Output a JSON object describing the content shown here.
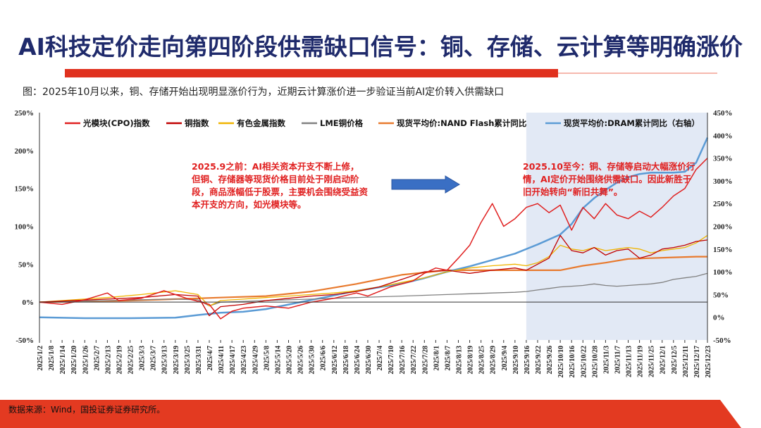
{
  "title": "AI科技定价走向第四阶段供需缺口信号：铜、存储、云计算等明确涨价",
  "caption": "图：2025年10月以来，铜、存储开始出现明显涨价行为，近期云计算涨价进一步验证当前AI定价转入供需缺口",
  "source": "数据来源：Wind，国投证券证券研究所。",
  "colors": {
    "title": "#1f2a6b",
    "accent_red": "#e0311e",
    "shade": "#dde5f3"
  },
  "annotations": {
    "before": "2025.9之前：AI相关资本开支不断上修，但铜、存储器等现货价格目前处于刚启动阶段，商品涨幅低于股票，主要机会围绕受益资本开支的方向，如光模块等。",
    "after": "2025.10至今：铜、存储等启动大幅涨价行情，AI定价开始围绕供需缺口。因此新胜于旧开始转向“新旧共舞”。"
  },
  "chart_data": {
    "type": "line",
    "x_labels": [
      "2025/1/2",
      "2025/1/8",
      "2025/1/14",
      "2025/1/20",
      "2025/1/26",
      "2025/2/7",
      "2025/2/13",
      "2025/2/19",
      "2025/2/25",
      "2025/3/3",
      "2025/3/7",
      "2025/3/13",
      "2025/3/19",
      "2025/3/25",
      "2025/3/31",
      "2025/4/7",
      "2025/4/11",
      "2025/4/17",
      "2025/4/23",
      "2025/4/29",
      "2025/5/8",
      "2025/5/14",
      "2025/5/20",
      "2025/5/26",
      "2025/5/30",
      "2025/6/6",
      "2025/6/12",
      "2025/6/18",
      "2025/6/24",
      "2025/6/30",
      "2025/7/4",
      "2025/7/10",
      "2025/7/16",
      "2025/7/22",
      "2025/7/28",
      "2025/8/1",
      "2025/8/7",
      "2025/8/13",
      "2025/8/19",
      "2025/8/25",
      "2025/8/29",
      "2025/9/4",
      "2025/9/10",
      "2025/9/16",
      "2025/9/22",
      "2025/9/26",
      "2025/10/10",
      "2025/10/16",
      "2025/10/22",
      "2025/10/28",
      "2025/11/3",
      "2025/11/7",
      "2025/11/13",
      "2025/11/19",
      "2025/11/25",
      "2025/12/1",
      "2025/12/5",
      "2025/12/11",
      "2025/12/17",
      "2025/12/23"
    ],
    "left_axis": {
      "min": -50,
      "max": 250,
      "ticks": [
        "-50%",
        "0%",
        "50%",
        "100%",
        "150%",
        "200%",
        "250%"
      ],
      "tick_values": [
        -50,
        0,
        50,
        100,
        150,
        200,
        250
      ]
    },
    "right_axis": {
      "min": -50,
      "max": 450,
      "ticks": [
        "-50%",
        "0%",
        "50%",
        "100%",
        "150%",
        "200%",
        "250%",
        "300%",
        "350%",
        "400%",
        "450%"
      ],
      "tick_values": [
        -50,
        0,
        50,
        100,
        150,
        200,
        250,
        300,
        350,
        400,
        450
      ]
    },
    "shaded_range": [
      "2025/9/16",
      "2025/12/23"
    ],
    "series": [
      {
        "name": "光模块(CPO)指数",
        "color": "#e02020",
        "axis": "left",
        "width": 1.5,
        "points": [
          [
            0,
            0
          ],
          [
            2,
            -3
          ],
          [
            4,
            3
          ],
          [
            6,
            12
          ],
          [
            7,
            2
          ],
          [
            9,
            5
          ],
          [
            11,
            15
          ],
          [
            13,
            5
          ],
          [
            15,
            -3
          ],
          [
            16,
            -22
          ],
          [
            17,
            -12
          ],
          [
            18,
            -8
          ],
          [
            20,
            -5
          ],
          [
            22,
            -8
          ],
          [
            23,
            -4
          ],
          [
            24,
            0
          ],
          [
            26,
            5
          ],
          [
            28,
            12
          ],
          [
            29,
            8
          ],
          [
            31,
            20
          ],
          [
            33,
            28
          ],
          [
            34,
            38
          ],
          [
            35,
            45
          ],
          [
            36,
            42
          ],
          [
            37,
            58
          ],
          [
            38,
            75
          ],
          [
            39,
            105
          ],
          [
            40,
            130
          ],
          [
            41,
            100
          ],
          [
            42,
            110
          ],
          [
            43,
            125
          ],
          [
            44,
            130
          ],
          [
            45,
            118
          ],
          [
            46,
            128
          ],
          [
            47,
            95
          ],
          [
            48,
            125
          ],
          [
            49,
            110
          ],
          [
            50,
            130
          ],
          [
            51,
            115
          ],
          [
            52,
            110
          ],
          [
            53,
            120
          ],
          [
            54,
            112
          ],
          [
            55,
            125
          ],
          [
            56,
            140
          ],
          [
            57,
            150
          ],
          [
            58,
            175
          ],
          [
            59,
            190
          ]
        ]
      },
      {
        "name": "铜指数",
        "color": "#c00000",
        "axis": "left",
        "width": 1.3,
        "points": [
          [
            0,
            0
          ],
          [
            3,
            2
          ],
          [
            6,
            4
          ],
          [
            9,
            6
          ],
          [
            12,
            10
          ],
          [
            14,
            8
          ],
          [
            15,
            -18
          ],
          [
            16,
            -6
          ],
          [
            18,
            -3
          ],
          [
            20,
            2
          ],
          [
            22,
            5
          ],
          [
            24,
            8
          ],
          [
            26,
            10
          ],
          [
            28,
            14
          ],
          [
            30,
            20
          ],
          [
            32,
            30
          ],
          [
            34,
            40
          ],
          [
            36,
            42
          ],
          [
            38,
            38
          ],
          [
            40,
            42
          ],
          [
            42,
            45
          ],
          [
            43,
            42
          ],
          [
            44,
            50
          ],
          [
            45,
            58
          ],
          [
            46,
            88
          ],
          [
            47,
            68
          ],
          [
            48,
            65
          ],
          [
            49,
            72
          ],
          [
            50,
            62
          ],
          [
            51,
            68
          ],
          [
            52,
            70
          ],
          [
            53,
            58
          ],
          [
            54,
            62
          ],
          [
            55,
            70
          ],
          [
            56,
            72
          ],
          [
            57,
            75
          ],
          [
            58,
            80
          ],
          [
            59,
            82
          ]
        ]
      },
      {
        "name": "有色金属指数",
        "color": "#f0b400",
        "axis": "left",
        "width": 1.3,
        "points": [
          [
            0,
            0
          ],
          [
            3,
            3
          ],
          [
            6,
            6
          ],
          [
            9,
            10
          ],
          [
            12,
            15
          ],
          [
            14,
            10
          ],
          [
            15,
            -5
          ],
          [
            16,
            2
          ],
          [
            18,
            4
          ],
          [
            20,
            6
          ],
          [
            22,
            8
          ],
          [
            24,
            10
          ],
          [
            26,
            12
          ],
          [
            28,
            15
          ],
          [
            30,
            20
          ],
          [
            32,
            26
          ],
          [
            34,
            32
          ],
          [
            36,
            40
          ],
          [
            38,
            45
          ],
          [
            40,
            48
          ],
          [
            42,
            50
          ],
          [
            43,
            48
          ],
          [
            44,
            52
          ],
          [
            45,
            60
          ],
          [
            46,
            75
          ],
          [
            47,
            70
          ],
          [
            48,
            68
          ],
          [
            49,
            72
          ],
          [
            50,
            68
          ],
          [
            51,
            70
          ],
          [
            52,
            72
          ],
          [
            53,
            70
          ],
          [
            54,
            65
          ],
          [
            55,
            68
          ],
          [
            56,
            70
          ],
          [
            57,
            72
          ],
          [
            58,
            78
          ],
          [
            59,
            88
          ]
        ]
      },
      {
        "name": "LME铜价格",
        "color": "#808080",
        "axis": "left",
        "width": 1.3,
        "points": [
          [
            0,
            0
          ],
          [
            3,
            1
          ],
          [
            6,
            2
          ],
          [
            9,
            3
          ],
          [
            12,
            4
          ],
          [
            14,
            3
          ],
          [
            15,
            -5
          ],
          [
            16,
            0
          ],
          [
            18,
            1
          ],
          [
            20,
            2
          ],
          [
            22,
            3
          ],
          [
            24,
            4
          ],
          [
            26,
            5
          ],
          [
            28,
            6
          ],
          [
            30,
            7
          ],
          [
            32,
            8
          ],
          [
            34,
            9
          ],
          [
            36,
            10
          ],
          [
            38,
            11
          ],
          [
            40,
            12
          ],
          [
            42,
            13
          ],
          [
            43,
            14
          ],
          [
            44,
            16
          ],
          [
            45,
            18
          ],
          [
            46,
            20
          ],
          [
            47,
            21
          ],
          [
            48,
            22
          ],
          [
            49,
            24
          ],
          [
            50,
            22
          ],
          [
            51,
            21
          ],
          [
            52,
            22
          ],
          [
            53,
            23
          ],
          [
            54,
            24
          ],
          [
            55,
            26
          ],
          [
            56,
            30
          ],
          [
            57,
            32
          ],
          [
            58,
            34
          ],
          [
            59,
            38
          ]
        ]
      },
      {
        "name": "现货平均价:NAND Flash累计同比",
        "color": "#e87a2e",
        "axis": "left",
        "width": 2.2,
        "points": [
          [
            0,
            0
          ],
          [
            4,
            1
          ],
          [
            8,
            2
          ],
          [
            12,
            4
          ],
          [
            16,
            6
          ],
          [
            20,
            8
          ],
          [
            24,
            14
          ],
          [
            28,
            24
          ],
          [
            32,
            36
          ],
          [
            36,
            42
          ],
          [
            40,
            42
          ],
          [
            44,
            42
          ],
          [
            46,
            42
          ],
          [
            48,
            48
          ],
          [
            50,
            52
          ],
          [
            52,
            57
          ],
          [
            54,
            58
          ],
          [
            56,
            59
          ],
          [
            58,
            60
          ],
          [
            59,
            60
          ]
        ]
      },
      {
        "name": "现货平均价:DRAM累计同比（右轴）",
        "color": "#5b9bd5",
        "axis": "right",
        "width": 2.5,
        "points": [
          [
            0,
            0
          ],
          [
            4,
            -2
          ],
          [
            8,
            -2
          ],
          [
            12,
            -1
          ],
          [
            14,
            5
          ],
          [
            16,
            10
          ],
          [
            18,
            12
          ],
          [
            20,
            18
          ],
          [
            22,
            28
          ],
          [
            24,
            38
          ],
          [
            26,
            48
          ],
          [
            28,
            58
          ],
          [
            30,
            66
          ],
          [
            32,
            74
          ],
          [
            34,
            86
          ],
          [
            36,
            100
          ],
          [
            38,
            112
          ],
          [
            40,
            126
          ],
          [
            42,
            140
          ],
          [
            44,
            160
          ],
          [
            46,
            182
          ],
          [
            47,
            205
          ],
          [
            48,
            240
          ],
          [
            49,
            262
          ],
          [
            50,
            280
          ],
          [
            51,
            296
          ],
          [
            52,
            308
          ],
          [
            53,
            315
          ],
          [
            54,
            318
          ],
          [
            55,
            318
          ],
          [
            56,
            318
          ],
          [
            57,
            320
          ],
          [
            58,
            340
          ],
          [
            59,
            395
          ]
        ]
      }
    ]
  }
}
